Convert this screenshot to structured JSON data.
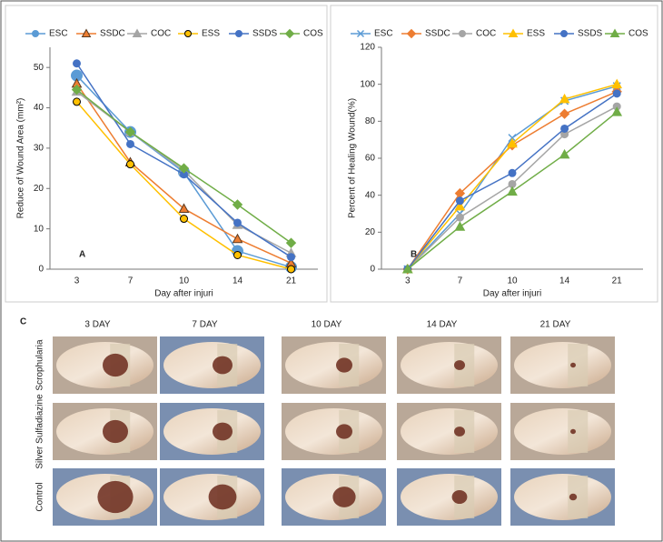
{
  "chart_data": [
    {
      "type": "line",
      "panel_label": "A",
      "x_label": "Day after injuri",
      "y_label": "Reduce of Wound Area (mm²)",
      "categories": [
        "3",
        "7",
        "10",
        "14",
        "21"
      ],
      "ylim": [
        0,
        55
      ],
      "yticks": [
        0,
        10,
        20,
        30,
        40,
        50
      ],
      "legend": "top",
      "series": [
        {
          "name": "ESC",
          "color": "#5b9bd5",
          "marker": "circle",
          "marker_size": 6,
          "values": [
            48,
            34,
            24,
            4.5,
            0.5
          ]
        },
        {
          "name": "SSDC",
          "color": "#ed7d31",
          "marker": "triangle",
          "marker_edge": "#5a3a20",
          "values": [
            46,
            26.5,
            15,
            7.5,
            1.5
          ]
        },
        {
          "name": "COC",
          "color": "#a5a5a5",
          "marker": "triangle",
          "values": [
            44,
            34,
            24.5,
            11,
            4
          ]
        },
        {
          "name": "ESS",
          "color": "#ffc000",
          "marker": "circle",
          "marker_edge": "#000000",
          "values": [
            41.5,
            26,
            12.5,
            3.5,
            0
          ]
        },
        {
          "name": "SSDS",
          "color": "#4472c4",
          "marker": "circle",
          "values": [
            51,
            31,
            23.5,
            11.5,
            3
          ]
        },
        {
          "name": "COS",
          "color": "#70ad47",
          "marker": "diamond",
          "values": [
            44.5,
            34,
            25,
            16,
            6.5
          ]
        }
      ]
    },
    {
      "type": "line",
      "panel_label": "B",
      "x_label": "Day after injuri",
      "y_label": "Percent of Healing Wound(%)",
      "categories": [
        "3",
        "7",
        "10",
        "14",
        "21"
      ],
      "ylim": [
        0,
        120
      ],
      "yticks": [
        0,
        20,
        40,
        60,
        80,
        100,
        120
      ],
      "legend": "top",
      "series": [
        {
          "name": "ESC",
          "color": "#5b9bd5",
          "marker": "x",
          "values": [
            0,
            30,
            71,
            91,
            99
          ]
        },
        {
          "name": "SSDC",
          "color": "#ed7d31",
          "marker": "diamond",
          "values": [
            0,
            41,
            67,
            84,
            96
          ]
        },
        {
          "name": "COC",
          "color": "#a5a5a5",
          "marker": "circle",
          "values": [
            0,
            28,
            46,
            73,
            88
          ]
        },
        {
          "name": "ESS",
          "color": "#ffc000",
          "marker": "triangle",
          "values": [
            0,
            34,
            68,
            92,
            100
          ]
        },
        {
          "name": "SSDS",
          "color": "#4472c4",
          "marker": "circle",
          "values": [
            0,
            37,
            52,
            76,
            95
          ]
        },
        {
          "name": "COS",
          "color": "#70ad47",
          "marker": "triangle",
          "values": [
            0,
            23,
            42,
            62,
            85
          ]
        }
      ]
    }
  ],
  "photo_panel": {
    "label": "C",
    "columns": [
      "3 DAY",
      "7 DAY",
      "10 DAY",
      "14 DAY",
      "21 DAY"
    ],
    "rows": [
      "Scrophularia",
      "Silver Sulfadiazine",
      "Control"
    ]
  }
}
